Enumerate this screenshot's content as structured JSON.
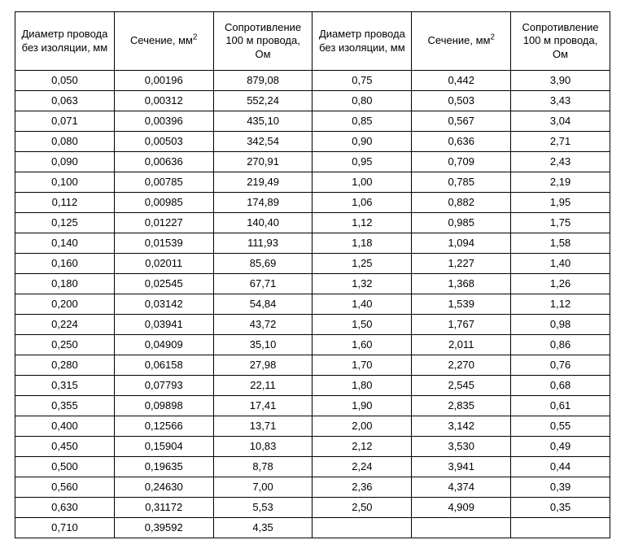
{
  "table": {
    "type": "table",
    "background_color": "#ffffff",
    "border_color": "#000000",
    "text_color": "#000000",
    "font_family": "Arial",
    "header_fontsize": 13,
    "cell_fontsize": 13,
    "column_count": 6,
    "columns": [
      {
        "label_html": "Диаметр провода без изоляции, мм"
      },
      {
        "label_html": "Сечение, мм<sup>2</sup>"
      },
      {
        "label_html": "Сопротивление 100 м провода, Ом"
      },
      {
        "label_html": "Диаметр провода без изоляции, мм"
      },
      {
        "label_html": "Сечение, мм<sup>2</sup>"
      },
      {
        "label_html": "Сопротивление 100 м провода, Ом"
      }
    ],
    "rows": [
      [
        "0,050",
        "0,00196",
        "879,08",
        "0,75",
        "0,442",
        "3,90"
      ],
      [
        "0,063",
        "0,00312",
        "552,24",
        "0,80",
        "0,503",
        "3,43"
      ],
      [
        "0,071",
        "0,00396",
        "435,10",
        "0,85",
        "0,567",
        "3,04"
      ],
      [
        "0,080",
        "0,00503",
        "342,54",
        "0,90",
        "0,636",
        "2,71"
      ],
      [
        "0,090",
        "0,00636",
        "270,91",
        "0,95",
        "0,709",
        "2,43"
      ],
      [
        "0,100",
        "0,00785",
        "219,49",
        "1,00",
        "0,785",
        "2,19"
      ],
      [
        "0,112",
        "0,00985",
        "174,89",
        "1,06",
        "0,882",
        "1,95"
      ],
      [
        "0,125",
        "0,01227",
        "140,40",
        "1,12",
        "0,985",
        "1,75"
      ],
      [
        "0,140",
        "0,01539",
        "111,93",
        "1,18",
        "1,094",
        "1,58"
      ],
      [
        "0,160",
        "0,02011",
        "85,69",
        "1,25",
        "1,227",
        "1,40"
      ],
      [
        "0,180",
        "0,02545",
        "67,71",
        "1,32",
        "1,368",
        "1,26"
      ],
      [
        "0,200",
        "0,03142",
        "54,84",
        "1,40",
        "1,539",
        "1,12"
      ],
      [
        "0,224",
        "0,03941",
        "43,72",
        "1,50",
        "1,767",
        "0,98"
      ],
      [
        "0,250",
        "0,04909",
        "35,10",
        "1,60",
        "2,011",
        "0,86"
      ],
      [
        "0,280",
        "0,06158",
        "27,98",
        "1,70",
        "2,270",
        "0,76"
      ],
      [
        "0,315",
        "0,07793",
        "22,11",
        "1,80",
        "2,545",
        "0,68"
      ],
      [
        "0,355",
        "0,09898",
        "17,41",
        "1,90",
        "2,835",
        "0,61"
      ],
      [
        "0,400",
        "0,12566",
        "13,71",
        "2,00",
        "3,142",
        "0,55"
      ],
      [
        "0,450",
        "0,15904",
        "10,83",
        "2,12",
        "3,530",
        "0,49"
      ],
      [
        "0,500",
        "0,19635",
        "8,78",
        "2,24",
        "3,941",
        "0,44"
      ],
      [
        "0,560",
        "0,24630",
        "7,00",
        "2,36",
        "4,374",
        "0,39"
      ],
      [
        "0,630",
        "0,31172",
        "5,53",
        "2,50",
        "4,909",
        "0,35"
      ],
      [
        "0,710",
        "0,39592",
        "4,35",
        "",
        "",
        ""
      ]
    ]
  }
}
